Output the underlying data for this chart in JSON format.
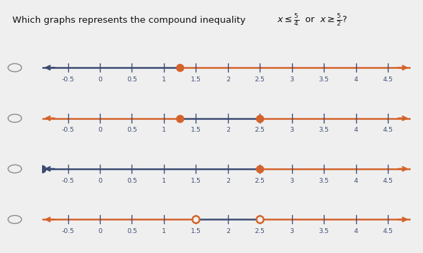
{
  "bg": "#EFEFEF",
  "orange": "#D4622A",
  "dark": "#3B4B72",
  "title_text1": "Which graphs represents the compound inequality ",
  "title_math": "$x \\leq \\frac{5}{4}$  or  $x \\geq \\frac{5}{2}$?",
  "x_min": -0.9,
  "x_max": 4.85,
  "tick_positions": [
    -0.5,
    0,
    0.5,
    1,
    1.5,
    2,
    2.5,
    3,
    3.5,
    4,
    4.5
  ],
  "tick_labels": [
    "-0.5",
    "0",
    "0.5",
    "1",
    "1.5",
    "2",
    "2.5",
    "3",
    "3.5",
    "4",
    "4.5"
  ],
  "val1": 1.25,
  "val2": 2.5,
  "graphs": [
    {
      "left_orange": false,
      "right_orange": true,
      "dots": [
        {
          "x": 1.25,
          "filled": true,
          "color": "orange"
        }
      ],
      "orange_segs": [
        [
          1.25,
          4.85
        ]
      ],
      "dark_segs": [
        [
          -0.9,
          1.25
        ]
      ]
    },
    {
      "left_orange": true,
      "right_orange": true,
      "dots": [
        {
          "x": 1.25,
          "filled": true,
          "color": "orange"
        },
        {
          "x": 2.5,
          "filled": true,
          "color": "orange"
        }
      ],
      "orange_segs": [
        [
          -0.9,
          1.25
        ],
        [
          2.5,
          4.85
        ]
      ],
      "dark_segs": [
        [
          1.25,
          2.5
        ]
      ]
    },
    {
      "left_orange": false,
      "right_orange": true,
      "dots": [
        {
          "x": -0.9,
          "filled": true,
          "color": "dark"
        },
        {
          "x": 2.5,
          "filled": true,
          "color": "orange"
        }
      ],
      "orange_segs": [
        [
          2.5,
          4.85
        ]
      ],
      "dark_segs": [
        [
          -0.9,
          2.5
        ]
      ]
    },
    {
      "left_orange": true,
      "right_orange": true,
      "dots": [
        {
          "x": 1.5,
          "filled": false,
          "color": "orange"
        },
        {
          "x": 2.5,
          "filled": false,
          "color": "orange"
        }
      ],
      "orange_segs": [
        [
          -0.9,
          1.5
        ],
        [
          2.5,
          4.85
        ]
      ],
      "dark_segs": [
        [
          1.5,
          2.5
        ]
      ]
    }
  ]
}
